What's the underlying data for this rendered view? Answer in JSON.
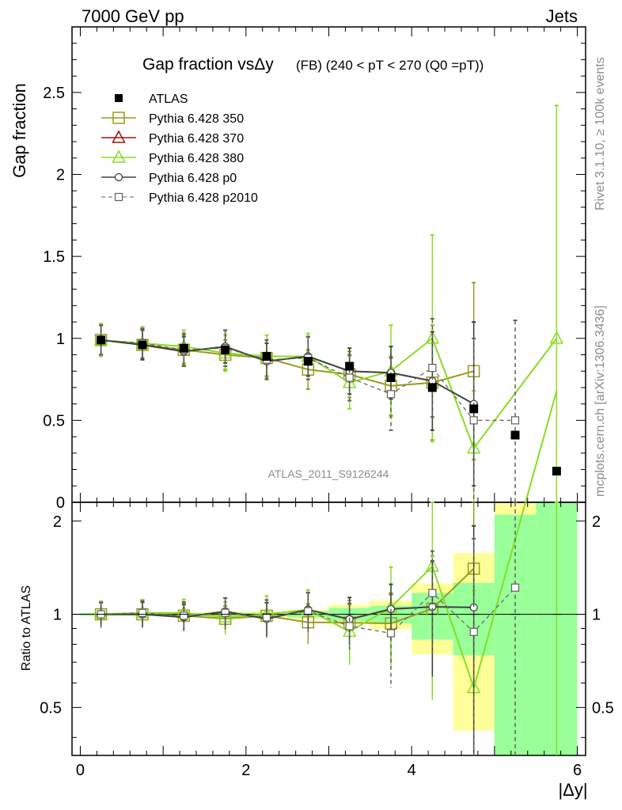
{
  "header": {
    "left": "7000 GeV pp",
    "right": "Jets",
    "side_top": "Rivet 3.1.10, ≥ 100k events",
    "side_bottom": "mcplots.cern.ch [arXiv:1306.3436]"
  },
  "chart_data": {
    "type": "scatter",
    "title": "Gap fraction vsΔy",
    "title_suffix": "(FB) (240 < pT < 270 (Q0 =pT))",
    "analysis_label": "ATLAS_2011_S9126244",
    "xlabel": "|Δy|",
    "ylabel_top": "Gap fraction",
    "ylabel_bottom": "Ratio to ATLAS",
    "xlim": [
      -0.1,
      6.1
    ],
    "ylim_top": [
      0,
      2.9
    ],
    "ylim_bottom": [
      0.35,
      2.3
    ],
    "x_ticks": [
      "0",
      "2",
      "4",
      "6"
    ],
    "y_ticks_top": [
      "0",
      "0.5",
      "1",
      "1.5",
      "2",
      "2.5"
    ],
    "y_ticks_bottom": [
      "0.5",
      "1",
      "2"
    ],
    "x": [
      0.25,
      0.75,
      1.25,
      1.75,
      2.25,
      2.75,
      3.25,
      3.75,
      4.25,
      4.75,
      5.25,
      5.75
    ],
    "data": {
      "name": "ATLAS",
      "values": [
        0.99,
        0.96,
        0.94,
        0.93,
        0.89,
        0.86,
        0.83,
        0.76,
        0.7,
        0.57,
        0.41,
        0.19
      ],
      "band_inner": [
        0.01,
        0.01,
        0.01,
        0.01,
        0.01,
        0.02,
        0.04,
        0.05,
        0.12,
        0.15,
        0.45,
        0.85
      ],
      "band_outer": [
        0.01,
        0.01,
        0.01,
        0.02,
        0.02,
        0.03,
        0.06,
        0.08,
        0.18,
        0.33,
        0.95,
        1.3
      ]
    },
    "series": [
      {
        "name": "Pythia 6.428 350",
        "color": "#9a9a20",
        "marker": "square-open",
        "dash": false,
        "x": [
          0.25,
          0.75,
          1.25,
          1.75,
          2.25,
          2.75,
          3.25,
          3.75,
          4.25,
          4.75
        ],
        "values": [
          0.99,
          0.96,
          0.93,
          0.9,
          0.88,
          0.81,
          0.78,
          0.71,
          0.73,
          0.8
        ],
        "errors": [
          0.09,
          0.09,
          0.09,
          0.09,
          0.11,
          0.12,
          0.14,
          0.18,
          0.35,
          0.54
        ]
      },
      {
        "name": "Pythia 6.428 370",
        "color": "#a01010",
        "marker": "triangle-open",
        "dash": false,
        "x": [],
        "values": [],
        "errors": []
      },
      {
        "name": "Pythia 6.428 380",
        "color": "#88dd22",
        "marker": "triangle-open",
        "dash": false,
        "x": [
          0.25,
          0.75,
          1.25,
          1.75,
          2.25,
          2.75,
          3.25,
          3.75,
          4.25,
          4.75,
          5.75
        ],
        "values": [
          0.99,
          0.97,
          0.95,
          0.91,
          0.89,
          0.89,
          0.73,
          0.8,
          1.0,
          0.33,
          1.0
        ],
        "errors": [
          0.1,
          0.1,
          0.1,
          0.11,
          0.13,
          0.14,
          0.16,
          0.28,
          0.63,
          0.35,
          1.42
        ]
      },
      {
        "name": "Pythia 6.428 p0",
        "color": "#404040",
        "marker": "circle-open",
        "dash": false,
        "x": [
          0.25,
          0.75,
          1.25,
          1.75,
          2.25,
          2.75,
          3.25,
          3.75,
          4.25,
          4.75
        ],
        "values": [
          0.99,
          0.96,
          0.92,
          0.95,
          0.86,
          0.89,
          0.8,
          0.79,
          0.74,
          0.6
        ],
        "errors": [
          0.09,
          0.09,
          0.09,
          0.1,
          0.11,
          0.12,
          0.14,
          0.16,
          0.3,
          0.5
        ]
      },
      {
        "name": "Pythia 6.428 p2010",
        "color": "#606060",
        "marker": "square-small-open",
        "dash": true,
        "x": [
          0.25,
          0.75,
          1.25,
          1.75,
          2.25,
          2.75,
          3.25,
          3.75,
          4.25,
          4.75,
          5.25
        ],
        "values": [
          0.99,
          0.97,
          0.93,
          0.94,
          0.87,
          0.88,
          0.76,
          0.66,
          0.82,
          0.5,
          0.5
        ],
        "errors": [
          0.09,
          0.09,
          0.1,
          0.11,
          0.12,
          0.13,
          0.14,
          0.22,
          0.3,
          0.5,
          0.61
        ]
      }
    ],
    "colors": {
      "band_inner": "#99ff99",
      "band_outer": "#ffff99",
      "data": "#000000"
    },
    "grid": false,
    "legend_position": "top-left"
  }
}
